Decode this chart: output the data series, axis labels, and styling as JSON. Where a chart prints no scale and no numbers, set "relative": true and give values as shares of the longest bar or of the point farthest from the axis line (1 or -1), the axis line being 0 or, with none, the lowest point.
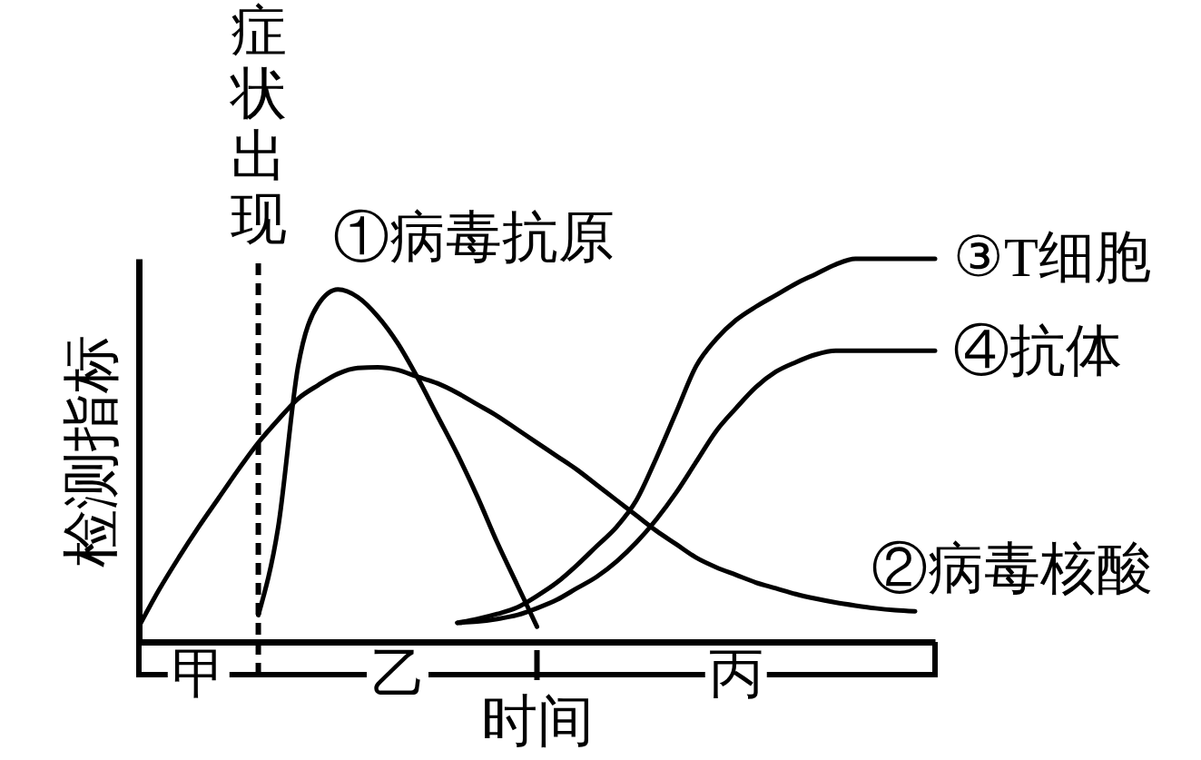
{
  "chart_data": {
    "type": "line",
    "relative": true,
    "xlabel": "时间",
    "ylabel": "检测指标",
    "line_style": "solid",
    "marker": "none",
    "categories": [
      null,
      null,
      null,
      "甲",
      null,
      null,
      null,
      null,
      null,
      null,
      null,
      null,
      null,
      "乙",
      null,
      null,
      null,
      null,
      null,
      null,
      null,
      null,
      null,
      null,
      null,
      null,
      null,
      null,
      null,
      null,
      "丙",
      null,
      null,
      null,
      null,
      null,
      null,
      null,
      null,
      null,
      null
    ],
    "series": [
      {
        "name": "①病毒抗原",
        "color": "#000000",
        "values": [
          null,
          null,
          null,
          null,
          null,
          null,
          0.07,
          0.3,
          0.72,
          0.88,
          0.92,
          0.9,
          0.85,
          0.78,
          0.69,
          0.59,
          0.49,
          0.38,
          0.26,
          0.15,
          0.04,
          null,
          null,
          null,
          null,
          null,
          null,
          null,
          null,
          null,
          null,
          null,
          null,
          null,
          null,
          null,
          null,
          null,
          null,
          null,
          null
        ]
      },
      {
        "name": "②病毒核酸",
        "color": "#000000",
        "values": [
          0.04,
          0.135,
          0.22,
          0.3,
          0.375,
          0.45,
          0.52,
          0.58,
          0.635,
          0.67,
          0.7,
          0.715,
          0.717,
          0.71,
          0.692,
          0.675,
          0.65,
          0.62,
          0.59,
          0.555,
          0.52,
          0.485,
          0.45,
          0.41,
          0.37,
          0.33,
          0.29,
          0.255,
          0.22,
          0.195,
          0.175,
          0.155,
          0.14,
          0.125,
          0.113,
          0.103,
          0.095,
          0.088,
          0.083,
          0.08,
          null
        ]
      },
      {
        "name": "③T细胞",
        "color": "#000000",
        "values": [
          null,
          null,
          null,
          null,
          null,
          null,
          null,
          null,
          null,
          null,
          null,
          null,
          null,
          null,
          null,
          null,
          0.05,
          0.06,
          0.073,
          0.09,
          0.12,
          0.155,
          0.2,
          0.25,
          0.3,
          0.37,
          0.48,
          0.6,
          0.72,
          0.79,
          0.84,
          0.875,
          0.905,
          0.935,
          0.96,
          0.985,
          1,
          1,
          1,
          1,
          1
        ]
      },
      {
        "name": "④抗体",
        "color": "#000000",
        "values": [
          null,
          null,
          null,
          null,
          null,
          null,
          null,
          null,
          null,
          null,
          null,
          null,
          null,
          null,
          null,
          null,
          0.05,
          0.053,
          0.06,
          0.07,
          0.088,
          0.11,
          0.14,
          0.17,
          0.21,
          0.26,
          0.32,
          0.39,
          0.47,
          0.55,
          0.61,
          0.665,
          0.705,
          0.73,
          0.75,
          0.76,
          0.76,
          0.76,
          0.76,
          0.76,
          0.76
        ]
      }
    ],
    "annotations": [
      "症状出现"
    ]
  }
}
